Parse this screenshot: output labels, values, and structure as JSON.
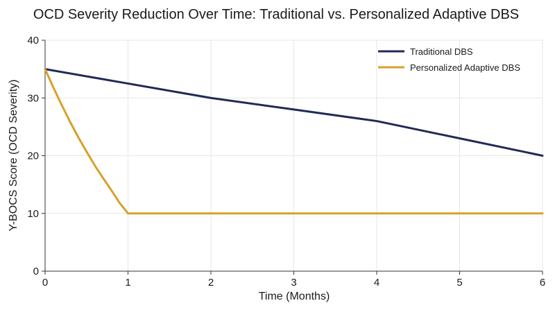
{
  "chart_data": {
    "type": "line",
    "title": "OCD Severity Reduction Over Time: Traditional vs. Personalized Adaptive DBS",
    "xlabel": "Time (Months)",
    "ylabel": "Y-BOCS Score (OCD Severity)",
    "xlim": [
      0,
      6
    ],
    "ylim": [
      0,
      40
    ],
    "x_ticks": [
      "0",
      "1",
      "2",
      "3",
      "4",
      "5",
      "6"
    ],
    "y_ticks": [
      "0",
      "10",
      "20",
      "30",
      "40"
    ],
    "grid": true,
    "legend_position": "top-right",
    "series": [
      {
        "name": "Traditional DBS",
        "color": "#1f2a56",
        "x": [
          0,
          1,
          2,
          3,
          4,
          5,
          6
        ],
        "y": [
          35,
          32.5,
          30,
          28,
          26,
          23,
          20
        ]
      },
      {
        "name": "Personalized Adaptive DBS",
        "color": "#d9a028",
        "x": [
          0,
          0.1,
          0.2,
          0.3,
          0.4,
          0.5,
          0.6,
          0.7,
          0.8,
          0.9,
          1,
          2,
          3,
          4,
          5,
          6
        ],
        "y": [
          35,
          31.8,
          28.8,
          25.9,
          23.2,
          20.7,
          18.3,
          16.1,
          14.0,
          11.8,
          10,
          10,
          10,
          10,
          10,
          10
        ]
      }
    ]
  }
}
